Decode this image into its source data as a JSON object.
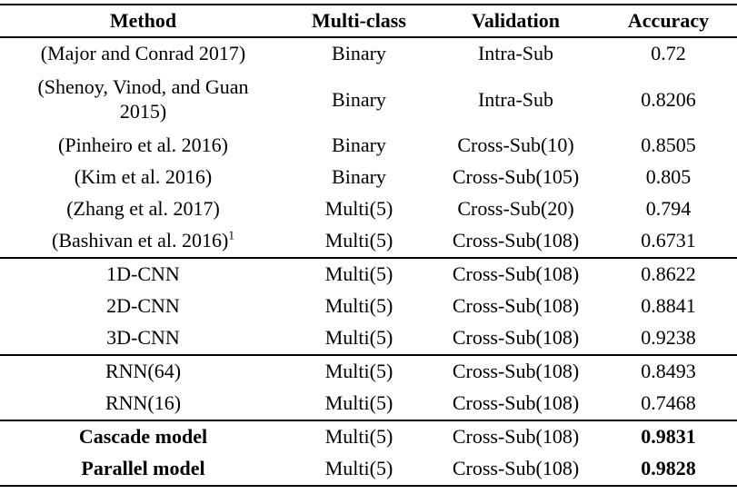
{
  "colors": {
    "background": "#ffffff",
    "text": "#000000",
    "rule": "#000000"
  },
  "table": {
    "columns": [
      "Method",
      "Multi-class",
      "Validation",
      "Accuracy"
    ],
    "sections": [
      {
        "rows": [
          {
            "method": "(Major and Conrad 2017)",
            "multi_class": "Binary",
            "validation": "Intra-Sub",
            "accuracy": "0.72"
          },
          {
            "method": "(Shenoy, Vinod, and Guan 2015)",
            "multi_class": "Binary",
            "validation": "Intra-Sub",
            "accuracy": "0.8206",
            "tall": true
          },
          {
            "method": "(Pinheiro et al. 2016)",
            "multi_class": "Binary",
            "validation": "Cross-Sub(10)",
            "accuracy": "0.8505"
          },
          {
            "method": "(Kim et al. 2016)",
            "multi_class": "Binary",
            "validation": "Cross-Sub(105)",
            "accuracy": "0.805"
          },
          {
            "method": "(Zhang et al. 2017)",
            "multi_class": "Multi(5)",
            "validation": "Cross-Sub(20)",
            "accuracy": "0.794"
          },
          {
            "method": "(Bashivan et al. 2016)",
            "method_sup": "1",
            "multi_class": "Multi(5)",
            "validation": "Cross-Sub(108)",
            "accuracy": "0.6731"
          }
        ]
      },
      {
        "rows": [
          {
            "method": "1D-CNN",
            "multi_class": "Multi(5)",
            "validation": "Cross-Sub(108)",
            "accuracy": "0.8622"
          },
          {
            "method": "2D-CNN",
            "multi_class": "Multi(5)",
            "validation": "Cross-Sub(108)",
            "accuracy": "0.8841"
          },
          {
            "method": "3D-CNN",
            "multi_class": "Multi(5)",
            "validation": "Cross-Sub(108)",
            "accuracy": "0.9238"
          }
        ]
      },
      {
        "rows": [
          {
            "method": "RNN(64)",
            "multi_class": "Multi(5)",
            "validation": "Cross-Sub(108)",
            "accuracy": "0.8493"
          },
          {
            "method": "RNN(16)",
            "multi_class": "Multi(5)",
            "validation": "Cross-Sub(108)",
            "accuracy": "0.7468"
          }
        ]
      },
      {
        "rows": [
          {
            "method": "Cascade model",
            "bold": true,
            "multi_class": "Multi(5)",
            "validation": "Cross-Sub(108)",
            "accuracy": "0.9831"
          },
          {
            "method": "Parallel model",
            "bold": true,
            "multi_class": "Multi(5)",
            "validation": "Cross-Sub(108)",
            "accuracy": "0.9828"
          }
        ]
      }
    ]
  }
}
